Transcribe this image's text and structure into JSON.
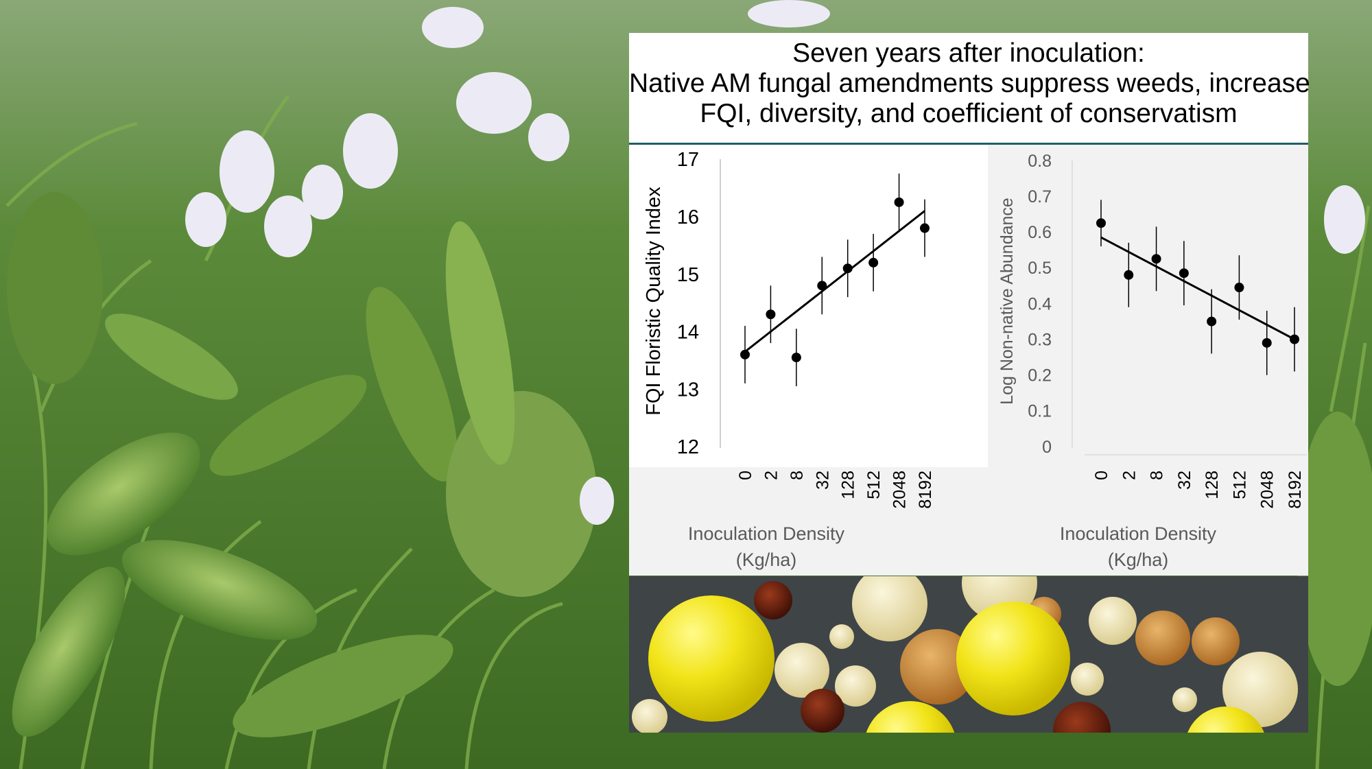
{
  "title_lines": [
    "Seven years after inoculation:",
    "Native AM fungal amendments suppress weeds, increase",
    "FQI, diversity, and coefficient of conservatism"
  ],
  "chart_data": [
    {
      "type": "scatter",
      "title": "",
      "xlabel": "Inoculation Density",
      "xlabel_unit": "(Kg/ha)",
      "ylabel": "FQI Floristic Quality Index",
      "categories": [
        "0",
        "2",
        "8",
        "32",
        "128",
        "512",
        "2048",
        "8192"
      ],
      "values": [
        13.6,
        14.3,
        13.55,
        14.8,
        15.1,
        15.2,
        16.25,
        15.8
      ],
      "error": [
        0.5,
        0.5,
        0.5,
        0.5,
        0.5,
        0.5,
        0.5,
        0.5
      ],
      "trendline": [
        13.65,
        16.1
      ],
      "yticks": [
        "12",
        "13",
        "14",
        "15",
        "16",
        "17"
      ],
      "ylim": [
        12,
        17
      ],
      "background": "#ffffff"
    },
    {
      "type": "scatter",
      "title": "",
      "xlabel": "Inoculation Density",
      "xlabel_unit": "(Kg/ha)",
      "ylabel": "Log Non-native Abundance",
      "categories": [
        "0",
        "2",
        "8",
        "32",
        "128",
        "512",
        "2048",
        "8192"
      ],
      "values": [
        0.625,
        0.48,
        0.525,
        0.485,
        0.35,
        0.445,
        0.29,
        0.3
      ],
      "error": [
        0.065,
        0.09,
        0.09,
        0.09,
        0.09,
        0.09,
        0.09,
        0.09
      ],
      "trendline": [
        0.585,
        0.3
      ],
      "yticks": [
        "0",
        "0.1",
        "0.2",
        "0.3",
        "0.4",
        "0.5",
        "0.6",
        "0.7",
        "0.8"
      ],
      "ylim": [
        0,
        0.8
      ],
      "background": "#f2f2f2"
    }
  ],
  "colors": {
    "mark": "#000000",
    "label_grey": "#595959",
    "title_rule": "#1f5e64",
    "spore_yellow": "#f2e419",
    "spore_amber": "#c8862e",
    "spore_dark": "#5a1a0d"
  }
}
